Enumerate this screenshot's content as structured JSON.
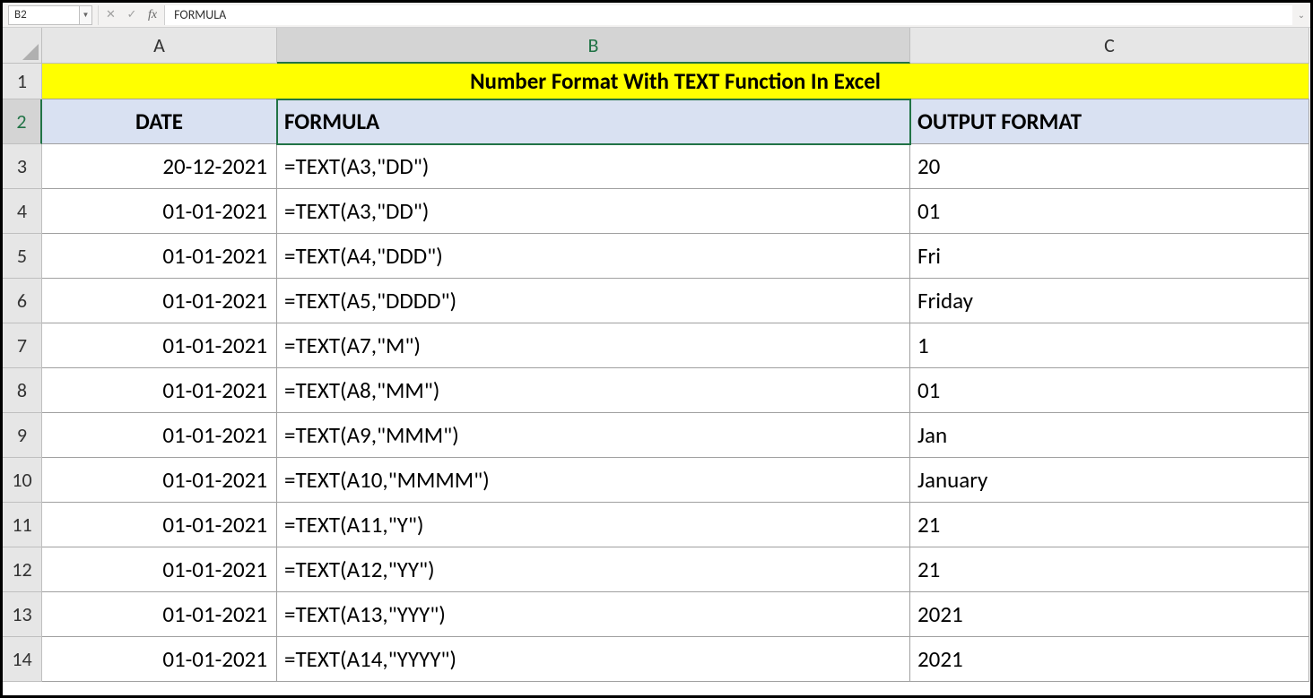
{
  "nameBox": "B2",
  "formulaBar": "FORMULA",
  "columns": [
    "A",
    "B",
    "C"
  ],
  "selectedCol": "B",
  "selectedRow": "2",
  "rowLabels": [
    "1",
    "2",
    "3",
    "4",
    "5",
    "6",
    "7",
    "8",
    "9",
    "10",
    "11",
    "12",
    "13",
    "14"
  ],
  "title": "Number Format With TEXT Function In Excel",
  "headers": {
    "a": "DATE",
    "b": "FORMULA",
    "c": "OUTPUT FORMAT"
  },
  "rows": [
    {
      "a": "20-12-2021",
      "b": "=TEXT(A3,\"DD\")",
      "c": "20"
    },
    {
      "a": "01-01-2021",
      "b": "=TEXT(A3,\"DD\")",
      "c": "01"
    },
    {
      "a": "01-01-2021",
      "b": "=TEXT(A4,\"DDD\")",
      "c": "Fri"
    },
    {
      "a": "01-01-2021",
      "b": "=TEXT(A5,\"DDDD\")",
      "c": "Friday"
    },
    {
      "a": "01-01-2021",
      "b": "=TEXT(A7,\"M\")",
      "c": "1"
    },
    {
      "a": "01-01-2021",
      "b": "=TEXT(A8,\"MM\")",
      "c": "01"
    },
    {
      "a": "01-01-2021",
      "b": "=TEXT(A9,\"MMM\")",
      "c": "Jan"
    },
    {
      "a": "01-01-2021",
      "b": "=TEXT(A10,\"MMMM\")",
      "c": "January"
    },
    {
      "a": "01-01-2021",
      "b": "=TEXT(A11,\"Y\")",
      "c": "21"
    },
    {
      "a": "01-01-2021",
      "b": "=TEXT(A12,\"YY\")",
      "c": "21"
    },
    {
      "a": "01-01-2021",
      "b": "=TEXT(A13,\"YYY\")",
      "c": "2021"
    },
    {
      "a": "01-01-2021",
      "b": "=TEXT(A14,\"YYYY\")",
      "c": "2021"
    }
  ],
  "colors": {
    "titleBg": "#ffff00",
    "headerBg": "#d9e1f2",
    "selection": "#217346",
    "gridHead": "#e6e6e6"
  }
}
